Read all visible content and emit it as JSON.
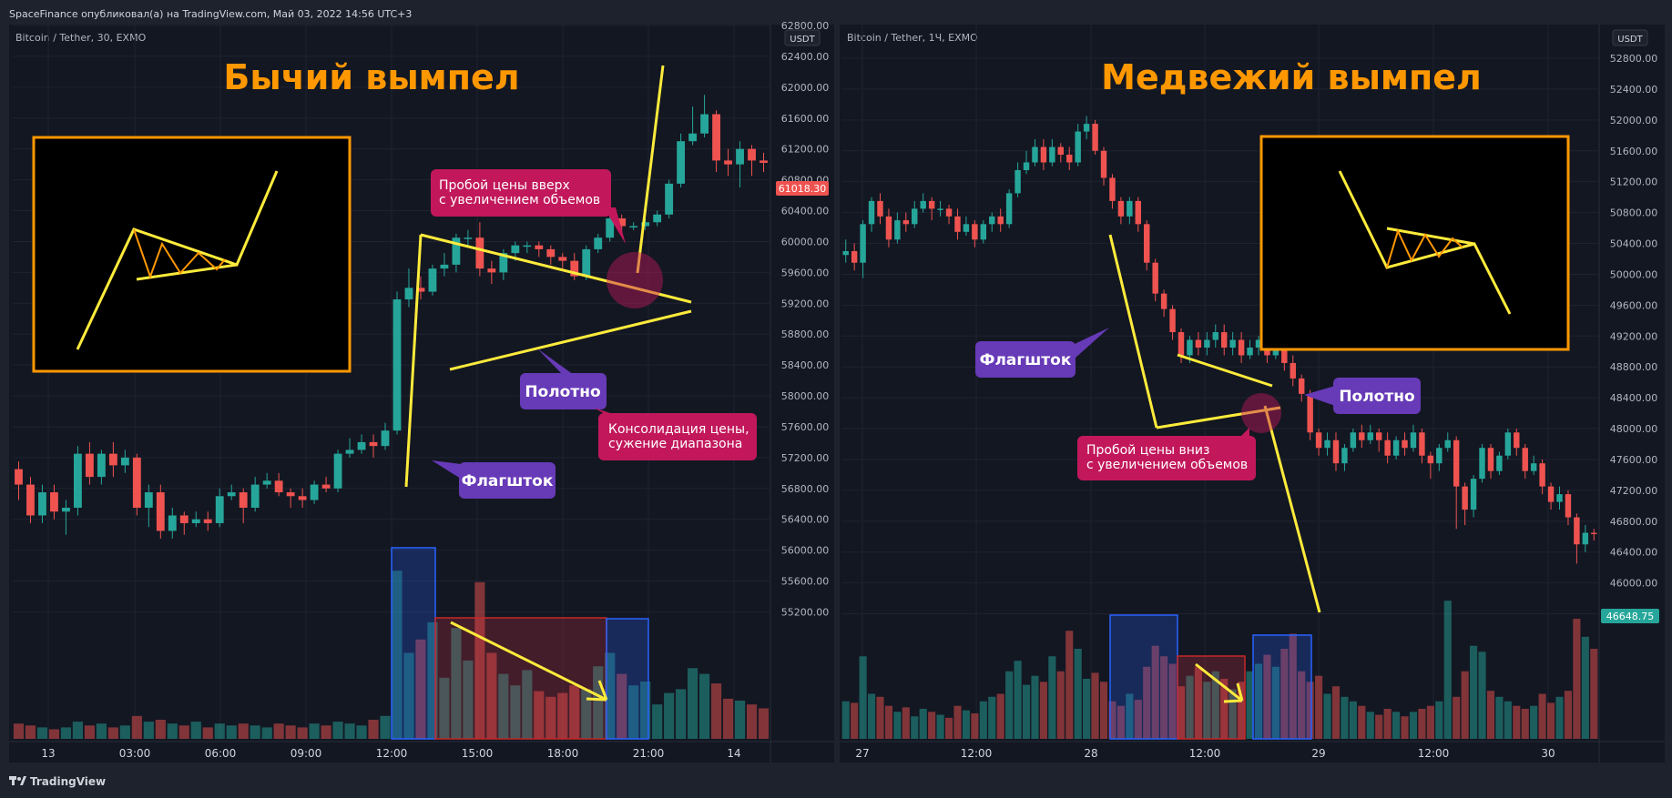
{
  "header": {
    "publisher_text": "SpaceFinance опубликовал(а) на TradingView.com, Май 03, 2022 14:56 UTC+3"
  },
  "footer": {
    "brand": "TradingView"
  },
  "colors": {
    "bg": "#131722",
    "up": "#26a69a",
    "down": "#ef5350",
    "annotation": "#ffeb3b",
    "title": "#ff9800",
    "label_purple": "#673ab7",
    "label_pink": "#c2185b"
  },
  "left_chart": {
    "symbol_label": "Bitcoin / Tether, 30, EXMO",
    "currency": "USDT",
    "title": "Бычий вымпел",
    "price_ticks": [
      "62800.00",
      "62400.00",
      "62000.00",
      "61600.00",
      "61200.00",
      "60800.00",
      "60400.00",
      "60000.00",
      "59600.00",
      "59200.00",
      "58800.00",
      "58400.00",
      "58000.00",
      "57600.00",
      "57200.00",
      "56800.00",
      "56400.00",
      "56000.00",
      "55600.00",
      "55200.00"
    ],
    "last_price": "61018.30",
    "time_ticks": [
      "13",
      "03:00",
      "06:00",
      "09:00",
      "12:00",
      "15:00",
      "18:00",
      "21:00",
      "14"
    ],
    "labels": {
      "breakout": [
        "Пробой цены вверх",
        "с увеличением объемов"
      ],
      "pennant": "Полотно",
      "consolidation": [
        "Консолидация цены,",
        "сужение диапазона"
      ],
      "flagpole": "Флагшток"
    },
    "candles": [
      [
        57050,
        56850,
        57150,
        56650
      ],
      [
        56850,
        56450,
        56950,
        56350
      ],
      [
        56450,
        56750,
        56850,
        56350
      ],
      [
        56750,
        56500,
        56850,
        56400
      ],
      [
        56500,
        56550,
        56650,
        56200
      ],
      [
        56550,
        57250,
        57350,
        56450
      ],
      [
        57250,
        56950,
        57400,
        56850
      ],
      [
        56950,
        57250,
        57300,
        56850
      ],
      [
        57250,
        57100,
        57400,
        56950
      ],
      [
        57100,
        57200,
        57300,
        57000
      ],
      [
        57200,
        56550,
        57250,
        56450
      ],
      [
        56550,
        56750,
        56850,
        56300
      ],
      [
        56750,
        56250,
        56850,
        56150
      ],
      [
        56250,
        56450,
        56550,
        56150
      ],
      [
        56450,
        56350,
        56500,
        56200
      ],
      [
        56350,
        56400,
        56500,
        56300
      ],
      [
        56400,
        56350,
        56500,
        56250
      ],
      [
        56350,
        56700,
        56800,
        56300
      ],
      [
        56700,
        56750,
        56850,
        56650
      ],
      [
        56750,
        56550,
        56800,
        56350
      ],
      [
        56550,
        56850,
        56950,
        56500
      ],
      [
        56850,
        56900,
        57000,
        56800
      ],
      [
        56900,
        56750,
        57000,
        56700
      ],
      [
        56750,
        56700,
        56800,
        56550
      ],
      [
        56700,
        56650,
        56800,
        56550
      ],
      [
        56650,
        56850,
        56900,
        56600
      ],
      [
        56850,
        56800,
        56950,
        56750
      ],
      [
        56800,
        57250,
        57300,
        56750
      ],
      [
        57250,
        57300,
        57450,
        57200
      ],
      [
        57300,
        57400,
        57500,
        57250
      ],
      [
        57400,
        57350,
        57500,
        57200
      ],
      [
        57350,
        57550,
        57650,
        57300
      ],
      [
        57550,
        59250,
        59350,
        57500
      ],
      [
        59250,
        59400,
        59650,
        59150
      ],
      [
        59400,
        59350,
        59550,
        59250
      ],
      [
        59350,
        59650,
        59700,
        59300
      ],
      [
        59650,
        59700,
        59850,
        59550
      ],
      [
        59700,
        60050,
        60100,
        59600
      ],
      [
        60050,
        60050,
        60150,
        59950
      ],
      [
        60050,
        59650,
        60250,
        59550
      ],
      [
        59650,
        59600,
        59750,
        59450
      ],
      [
        59600,
        59850,
        59900,
        59500
      ],
      [
        59850,
        59950,
        60000,
        59750
      ],
      [
        59950,
        59950,
        60000,
        59850
      ],
      [
        59950,
        59900,
        60000,
        59800
      ],
      [
        59900,
        59800,
        59950,
        59700
      ],
      [
        59800,
        59750,
        59850,
        59650
      ],
      [
        59750,
        59550,
        59850,
        59500
      ],
      [
        59550,
        59900,
        59950,
        59500
      ],
      [
        59900,
        60050,
        60100,
        59850
      ],
      [
        60050,
        60300,
        60400,
        60000
      ],
      [
        60300,
        60200,
        60350,
        60100
      ],
      [
        60200,
        60200,
        60250,
        60150
      ],
      [
        60200,
        60250,
        60300,
        60150
      ],
      [
        60250,
        60350,
        60400,
        60200
      ],
      [
        60350,
        60750,
        60800,
        60300
      ],
      [
        60750,
        61300,
        61400,
        60700
      ],
      [
        61300,
        61400,
        61750,
        61250
      ],
      [
        61400,
        61650,
        61900,
        61350
      ],
      [
        61650,
        61050,
        61700,
        60900
      ],
      [
        61050,
        61000,
        61200,
        60850
      ],
      [
        61000,
        61200,
        61300,
        60700
      ],
      [
        61200,
        61050,
        61250,
        60850
      ],
      [
        61050,
        61020,
        61150,
        60900
      ]
    ],
    "volumes": [
      0.08,
      0.07,
      0.06,
      0.05,
      0.06,
      0.09,
      0.07,
      0.08,
      0.06,
      0.07,
      0.12,
      0.09,
      0.1,
      0.08,
      0.07,
      0.09,
      0.06,
      0.08,
      0.07,
      0.08,
      0.07,
      0.06,
      0.08,
      0.07,
      0.06,
      0.08,
      0.07,
      0.09,
      0.08,
      0.07,
      0.1,
      0.12,
      0.88,
      0.45,
      0.52,
      0.61,
      0.32,
      0.58,
      0.41,
      0.82,
      0.45,
      0.34,
      0.28,
      0.36,
      0.25,
      0.22,
      0.24,
      0.28,
      0.26,
      0.38,
      0.45,
      0.34,
      0.28,
      0.3,
      0.18,
      0.24,
      0.26,
      0.37,
      0.34,
      0.29,
      0.21,
      0.2,
      0.18,
      0.16
    ]
  },
  "right_chart": {
    "symbol_label": "Bitcoin / Tether, 1Ч, EXMO",
    "currency": "USDT",
    "title": "Медвежий вымпел",
    "price_ticks": [
      "52800.00",
      "52400.00",
      "52000.00",
      "51600.00",
      "51200.00",
      "50800.00",
      "50400.00",
      "50000.00",
      "49600.00",
      "49200.00",
      "48800.00",
      "48400.00",
      "48000.00",
      "47600.00",
      "47200.00",
      "46800.00",
      "46400.00",
      "46000.00",
      "45600.00"
    ],
    "last_price": "46648.75",
    "time_ticks": [
      "27",
      "12:00",
      "28",
      "12:00",
      "29",
      "12:00",
      "30"
    ],
    "labels": {
      "flagpole": "Флагшток",
      "pennant": "Полотно",
      "breakout": [
        "Пробой цены вниз",
        "с увеличением объемов"
      ]
    },
    "candles": [
      [
        50250,
        50300,
        50450,
        50150
      ],
      [
        50300,
        50150,
        50400,
        50050
      ],
      [
        50150,
        50650,
        50700,
        49950
      ],
      [
        50650,
        50950,
        51000,
        50550
      ],
      [
        50950,
        50750,
        51050,
        50650
      ],
      [
        50750,
        50450,
        50850,
        50350
      ],
      [
        50450,
        50700,
        50800,
        50400
      ],
      [
        50700,
        50650,
        50800,
        50550
      ],
      [
        50650,
        50850,
        50950,
        50600
      ],
      [
        50850,
        50950,
        51050,
        50800
      ],
      [
        50950,
        50850,
        51000,
        50700
      ],
      [
        50850,
        50850,
        50950,
        50750
      ],
      [
        50850,
        50750,
        50900,
        50650
      ],
      [
        50750,
        50550,
        50850,
        50450
      ],
      [
        50550,
        50650,
        50750,
        50500
      ],
      [
        50650,
        50450,
        50700,
        50350
      ],
      [
        50450,
        50650,
        50700,
        50400
      ],
      [
        50650,
        50750,
        50800,
        50550
      ],
      [
        50750,
        50650,
        50850,
        50550
      ],
      [
        50650,
        51050,
        51100,
        50600
      ],
      [
        51050,
        51350,
        51450,
        51000
      ],
      [
        51350,
        51450,
        51600,
        51300
      ],
      [
        51450,
        51650,
        51750,
        51400
      ],
      [
        51650,
        51450,
        51750,
        51350
      ],
      [
        51450,
        51650,
        51750,
        51400
      ],
      [
        51650,
        51550,
        51700,
        51450
      ],
      [
        51550,
        51450,
        51650,
        51350
      ],
      [
        51450,
        51850,
        51950,
        51400
      ],
      [
        51850,
        51950,
        52050,
        51750
      ],
      [
        51950,
        51600,
        52000,
        51550
      ],
      [
        51600,
        51250,
        51650,
        51150
      ],
      [
        51250,
        50950,
        51300,
        50850
      ],
      [
        50950,
        50750,
        51000,
        50650
      ],
      [
        50750,
        50950,
        51000,
        50650
      ],
      [
        50950,
        50650,
        51000,
        50550
      ],
      [
        50650,
        50150,
        50700,
        50050
      ],
      [
        50150,
        49750,
        50200,
        49650
      ],
      [
        49750,
        49550,
        49800,
        49450
      ],
      [
        49550,
        49250,
        49600,
        49150
      ],
      [
        49250,
        48950,
        49300,
        48850
      ],
      [
        48950,
        49150,
        49200,
        48850
      ],
      [
        49150,
        49050,
        49250,
        48950
      ],
      [
        49050,
        49150,
        49250,
        48950
      ],
      [
        49150,
        49250,
        49350,
        49050
      ],
      [
        49250,
        49050,
        49350,
        48950
      ],
      [
        49050,
        49150,
        49250,
        48950
      ],
      [
        49150,
        48950,
        49250,
        48850
      ],
      [
        48950,
        49050,
        49150,
        48900
      ],
      [
        49050,
        49150,
        49200,
        48950
      ],
      [
        49150,
        48950,
        49250,
        48850
      ],
      [
        48950,
        49050,
        49150,
        48900
      ],
      [
        49050,
        48850,
        49150,
        48750
      ],
      [
        48850,
        48650,
        48950,
        48550
      ],
      [
        48650,
        48450,
        48700,
        48350
      ],
      [
        48450,
        47950,
        48500,
        47850
      ],
      [
        47950,
        47750,
        48000,
        47650
      ],
      [
        47750,
        47850,
        47950,
        47650
      ],
      [
        47850,
        47550,
        47950,
        47450
      ],
      [
        47550,
        47750,
        47800,
        47450
      ],
      [
        47750,
        47950,
        48000,
        47700
      ],
      [
        47950,
        47850,
        48050,
        47750
      ],
      [
        47850,
        47950,
        48050,
        47800
      ],
      [
        47950,
        47850,
        48000,
        47700
      ],
      [
        47850,
        47650,
        47950,
        47550
      ],
      [
        47650,
        47850,
        47900,
        47600
      ],
      [
        47850,
        47750,
        47950,
        47650
      ],
      [
        47750,
        47950,
        48050,
        47700
      ],
      [
        47950,
        47650,
        48000,
        47550
      ],
      [
        47650,
        47550,
        47700,
        47350
      ],
      [
        47550,
        47750,
        47800,
        47450
      ],
      [
        47750,
        47850,
        47950,
        47700
      ],
      [
        47850,
        47250,
        47900,
        46700
      ],
      [
        47250,
        46950,
        47300,
        46750
      ],
      [
        46950,
        47350,
        47400,
        46850
      ],
      [
        47350,
        47750,
        47800,
        47300
      ],
      [
        47750,
        47450,
        47800,
        47350
      ],
      [
        47450,
        47650,
        47700,
        47400
      ],
      [
        47650,
        47950,
        48000,
        47600
      ],
      [
        47950,
        47750,
        48000,
        47650
      ],
      [
        47750,
        47450,
        47800,
        47350
      ],
      [
        47450,
        47550,
        47650,
        47400
      ],
      [
        47550,
        47250,
        47600,
        47150
      ],
      [
        47250,
        47050,
        47300,
        46950
      ],
      [
        47050,
        47150,
        47250,
        46950
      ],
      [
        47150,
        46850,
        47200,
        46750
      ],
      [
        46850,
        46500,
        46900,
        46250
      ],
      [
        46500,
        46650,
        46750,
        46400
      ],
      [
        46650,
        46649,
        46700,
        46550
      ]
    ],
    "volumes": [
      0.25,
      0.24,
      0.55,
      0.3,
      0.28,
      0.22,
      0.18,
      0.21,
      0.15,
      0.2,
      0.18,
      0.16,
      0.14,
      0.22,
      0.19,
      0.17,
      0.25,
      0.28,
      0.3,
      0.45,
      0.52,
      0.36,
      0.42,
      0.38,
      0.55,
      0.45,
      0.72,
      0.6,
      0.4,
      0.44,
      0.38,
      0.25,
      0.22,
      0.3,
      0.26,
      0.48,
      0.62,
      0.55,
      0.5,
      0.35,
      0.42,
      0.48,
      0.38,
      0.45,
      0.4,
      0.33,
      0.38,
      0.45,
      0.5,
      0.56,
      0.48,
      0.6,
      0.7,
      0.45,
      0.38,
      0.42,
      0.3,
      0.35,
      0.28,
      0.25,
      0.22,
      0.18,
      0.16,
      0.2,
      0.18,
      0.15,
      0.18,
      0.2,
      0.22,
      0.25,
      0.92,
      0.28,
      0.45,
      0.62,
      0.58,
      0.32,
      0.28,
      0.25,
      0.22,
      0.2,
      0.22,
      0.3,
      0.24,
      0.28,
      0.32,
      0.8,
      0.68,
      0.6
    ]
  }
}
